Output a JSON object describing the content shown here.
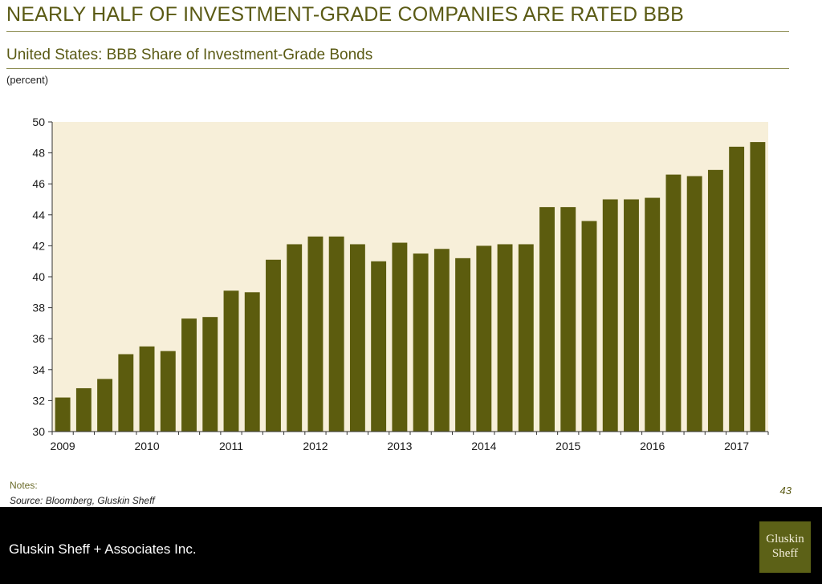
{
  "slide": {
    "headline": "NEARLY HALF OF INVESTMENT-GRADE COMPANIES ARE RATED BBB",
    "subtitle": "United States: BBB Share of Investment-Grade Bonds",
    "units": "(percent)",
    "notes_label": "Notes:",
    "source": "Source: Bloomberg, Gluskin Sheff",
    "page_number": "43"
  },
  "footer": {
    "company": "Gluskin Sheff + Associates Inc.",
    "logo_line1": "Gluskin",
    "logo_line2": "Sheff"
  },
  "colors": {
    "bar": "#5c5c0e",
    "plot_background": "#f7efd9",
    "title_text": "#5a5a14"
  },
  "chart_data": {
    "type": "bar",
    "ylim": [
      30,
      50
    ],
    "yticks": [
      30,
      32,
      34,
      36,
      38,
      40,
      42,
      44,
      46,
      48,
      50
    ],
    "xtick_labels": [
      "2009",
      "2010",
      "2011",
      "2012",
      "2013",
      "2014",
      "2015",
      "2016",
      "2017"
    ],
    "xtick_positions": [
      0,
      4,
      8,
      12,
      16,
      20,
      24,
      28,
      32
    ],
    "categories": [
      "2009 Q1",
      "2009 Q2",
      "2009 Q3",
      "2009 Q4",
      "2010 Q1",
      "2010 Q2",
      "2010 Q3",
      "2010 Q4",
      "2011 Q1",
      "2011 Q2",
      "2011 Q3",
      "2011 Q4",
      "2012 Q1",
      "2012 Q2",
      "2012 Q3",
      "2012 Q4",
      "2013 Q1",
      "2013 Q2",
      "2013 Q3",
      "2013 Q4",
      "2014 Q1",
      "2014 Q2",
      "2014 Q3",
      "2014 Q4",
      "2015 Q1",
      "2015 Q2",
      "2015 Q3",
      "2015 Q4",
      "2016 Q1",
      "2016 Q2",
      "2016 Q3",
      "2016 Q4",
      "2017 Q1",
      "2017 Q2"
    ],
    "values": [
      32.2,
      32.8,
      33.4,
      35.0,
      35.5,
      35.2,
      37.3,
      37.4,
      39.1,
      39.0,
      41.1,
      42.1,
      42.6,
      42.6,
      42.1,
      41.0,
      42.2,
      41.5,
      41.8,
      41.2,
      42.0,
      42.1,
      42.1,
      44.5,
      44.5,
      43.6,
      45.0,
      45.0,
      45.1,
      46.6,
      46.5,
      46.9,
      48.4,
      48.7
    ],
    "grid": false,
    "legend": "none"
  }
}
